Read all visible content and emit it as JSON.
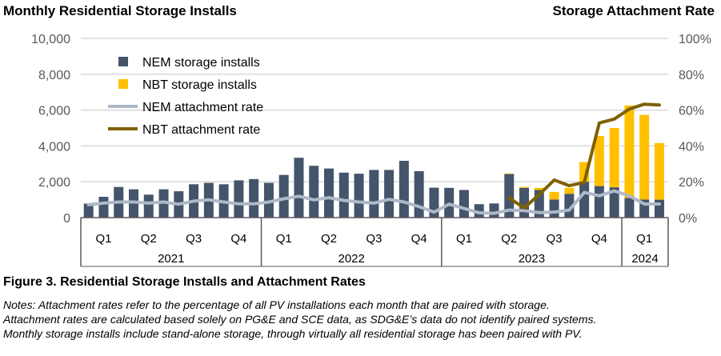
{
  "header": {
    "left_title": "Monthly Residential Storage Installs",
    "right_title": "Storage Attachment Rate"
  },
  "caption": "Figure 3. Residential Storage Installs and Attachment Rates",
  "notes": [
    "Notes: Attachment rates refer to the percentage of all PV installations each month that are paired with storage.",
    "Attachment rates are calculated based solely on PG&E and SCE data, as SDG&E’s data do not identify paired systems.",
    "Monthly storage installs include stand-alone storage, through virtually all residential storage has been paired with PV."
  ],
  "chart_data": {
    "type": "bar",
    "stacked": true,
    "x": [
      "2021-01",
      "2021-02",
      "2021-03",
      "2021-04",
      "2021-05",
      "2021-06",
      "2021-07",
      "2021-08",
      "2021-09",
      "2021-10",
      "2021-11",
      "2021-12",
      "2022-01",
      "2022-02",
      "2022-03",
      "2022-04",
      "2022-05",
      "2022-06",
      "2022-07",
      "2022-08",
      "2022-09",
      "2022-10",
      "2022-11",
      "2022-12",
      "2023-01",
      "2023-02",
      "2023-03",
      "2023-04",
      "2023-05",
      "2023-06",
      "2023-07",
      "2023-08",
      "2023-09",
      "2023-10",
      "2023-11",
      "2023-12",
      "2024-01",
      "2024-02",
      "2024-03"
    ],
    "quarter_labels": [
      "Q1",
      "Q2",
      "Q3",
      "Q4"
    ],
    "year_labels": [
      "2021",
      "2022",
      "2023",
      "2024"
    ],
    "left_axis": {
      "ylim": [
        0,
        10000
      ],
      "ticks": [
        "0",
        "2,000",
        "4,000",
        "6,000",
        "8,000",
        "10,000"
      ]
    },
    "right_axis": {
      "ylim": [
        0,
        100
      ],
      "ticks": [
        "0%",
        "20%",
        "40%",
        "60%",
        "80%",
        "100%"
      ]
    },
    "grid": true,
    "legend_position": "top-left",
    "series": [
      {
        "name": "NEM storage installs",
        "kind": "bar",
        "axis": "left",
        "color": "#44546A",
        "values": [
          780,
          1160,
          1710,
          1580,
          1280,
          1580,
          1470,
          1860,
          1940,
          1860,
          2080,
          2150,
          1940,
          2380,
          3340,
          2890,
          2740,
          2510,
          2450,
          2660,
          2660,
          3170,
          2590,
          1670,
          1660,
          1540,
          750,
          790,
          2430,
          1660,
          1540,
          1010,
          1330,
          2000,
          1760,
          1690,
          1100,
          1010,
          1000
        ]
      },
      {
        "name": "NBT storage installs",
        "kind": "bar",
        "axis": "left",
        "color": "#FFC000",
        "values": [
          0,
          0,
          0,
          0,
          0,
          0,
          0,
          0,
          0,
          0,
          0,
          0,
          0,
          0,
          0,
          0,
          0,
          0,
          0,
          0,
          0,
          0,
          0,
          0,
          0,
          0,
          0,
          0,
          30,
          50,
          120,
          420,
          330,
          1100,
          2790,
          3310,
          5160,
          4720,
          3160
        ]
      },
      {
        "name": "NEM attachment rate",
        "kind": "line",
        "axis": "right",
        "color": "#ADB9CA",
        "values": [
          7.2,
          8.1,
          8.7,
          8.7,
          8.1,
          8.7,
          7.5,
          9.2,
          9.9,
          8.7,
          7.7,
          7.7,
          8.7,
          10.5,
          11.9,
          9.9,
          11.1,
          9.6,
          8.7,
          8.1,
          10.2,
          8.7,
          6.1,
          3.1,
          7.5,
          5.1,
          2.7,
          2.4,
          4.2,
          3.9,
          2.8,
          3.1,
          4.2,
          14.0,
          12.2,
          14.9,
          12.1,
          7.6,
          7.6
        ]
      },
      {
        "name": "NBT attachment rate",
        "kind": "line",
        "axis": "right",
        "color": "#7F6000",
        "values": [
          null,
          null,
          null,
          null,
          null,
          null,
          null,
          null,
          null,
          null,
          null,
          null,
          null,
          null,
          null,
          null,
          null,
          null,
          null,
          null,
          null,
          null,
          null,
          null,
          null,
          null,
          null,
          null,
          11.0,
          5.4,
          12.8,
          21.0,
          17.8,
          19.6,
          52.8,
          55.0,
          60.6,
          63.3,
          62.8
        ]
      }
    ]
  }
}
